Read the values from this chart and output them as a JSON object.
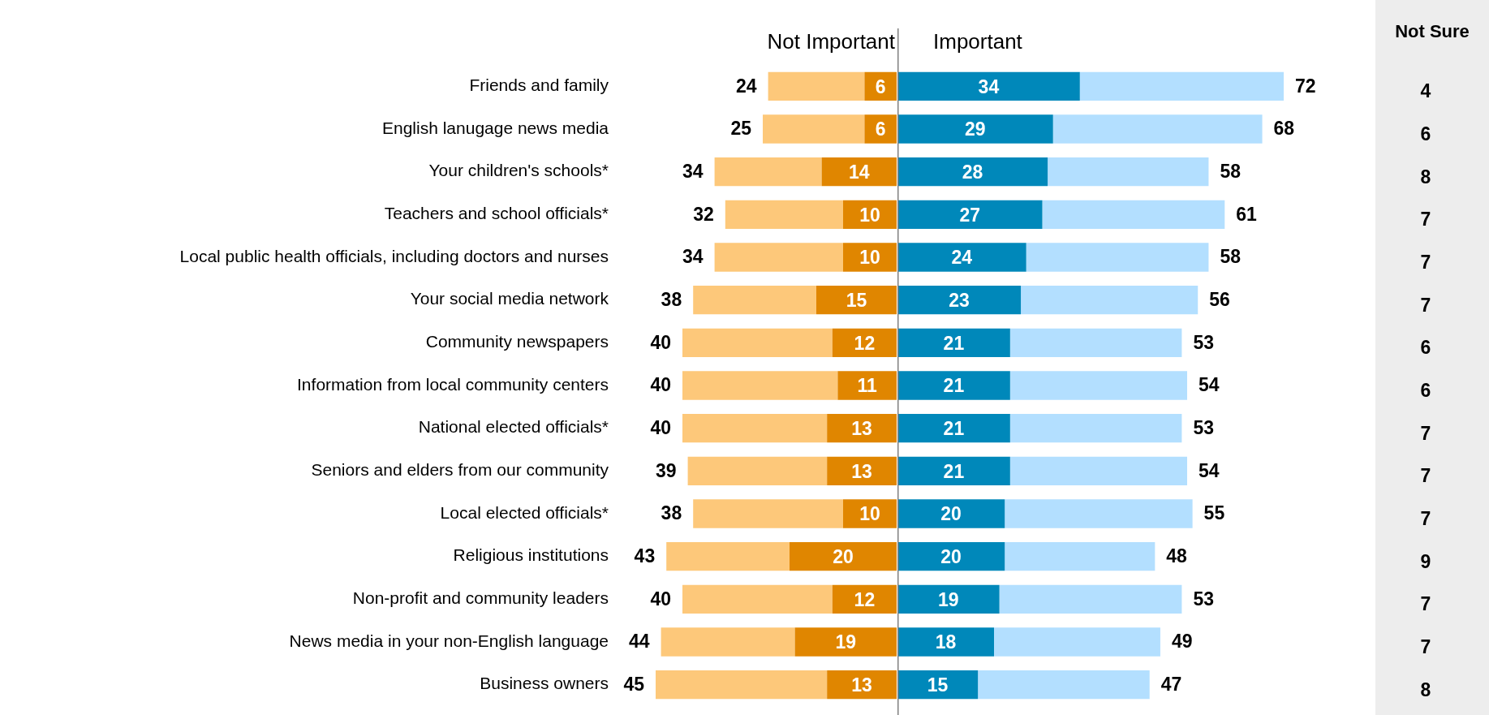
{
  "chart_data": [
    {
      "type": "bar",
      "orientation": "horizontal",
      "stacked": true,
      "title": "Not Important",
      "tick_labels": "y",
      "xlim": [
        45,
        0
      ],
      "categories": [
        "Friends and family",
        "English lanugage news media",
        "Your children's schools*",
        "Teachers and school officials*",
        "Local public health officials, including doctors and nurses",
        "Your social media network",
        "Community newspapers",
        "Information from local community centers",
        "National elected officials*",
        "Seniors and elders from our community",
        "Local elected officials*",
        "Religious institutions",
        "Non-profit and community leaders",
        "News media in your non-English language",
        "Business owners"
      ],
      "series": [
        {
          "color": "#e08600",
          "values": [
            6,
            6,
            14,
            10,
            10,
            15,
            12,
            11,
            13,
            13,
            10,
            20,
            12,
            19,
            13
          ],
          "value_labels": [
            "6",
            "6",
            "14",
            "10",
            "10",
            "15",
            "12",
            "11",
            "13",
            "13",
            "10",
            "20",
            "12",
            "19",
            "13"
          ]
        },
        {
          "color": "#fdc87a",
          "values": [
            18,
            19,
            20,
            22,
            24,
            23,
            28,
            29,
            27,
            26,
            28,
            23,
            28,
            25,
            32
          ]
        }
      ],
      "totals": [
        "24",
        "25",
        "34",
        "32",
        "34",
        "38",
        "40",
        "40",
        "40",
        "39",
        "38",
        "43",
        "40",
        "44",
        "45"
      ]
    },
    {
      "type": "bar",
      "orientation": "horizontal",
      "stacked": true,
      "title": "Important",
      "xlim": [
        0,
        72
      ],
      "categories": [
        null,
        null,
        null,
        null,
        null,
        null,
        null,
        null,
        null,
        null,
        null,
        null,
        null,
        null,
        null
      ],
      "series": [
        {
          "color": "#0088ba",
          "values": [
            34,
            29,
            28,
            27,
            24,
            23,
            21,
            21,
            21,
            21,
            20,
            20,
            19,
            18,
            15
          ],
          "value_labels": [
            "34",
            "29",
            "28",
            "27",
            "24",
            "23",
            "21",
            "21",
            "21",
            "21",
            "20",
            "20",
            "19",
            "18",
            "15"
          ]
        },
        {
          "color": "#b3dfff",
          "values": [
            38,
            39,
            30,
            34,
            34,
            33,
            32,
            33,
            32,
            33,
            35,
            28,
            34,
            31,
            32
          ]
        }
      ],
      "totals": [
        "72",
        "68",
        "58",
        "61",
        "58",
        "56",
        "53",
        "54",
        "53",
        "54",
        "55",
        "48",
        "53",
        "49",
        "47"
      ]
    },
    {
      "type": "other",
      "title": "Not Sure",
      "data_labels": true,
      "categories": [
        null,
        null,
        null,
        null,
        null,
        null,
        null,
        null,
        null,
        null,
        null,
        null,
        null,
        null,
        null
      ],
      "values": [
        4,
        6,
        8,
        7,
        7,
        7,
        6,
        6,
        7,
        7,
        7,
        9,
        7,
        7,
        8
      ]
    }
  ]
}
